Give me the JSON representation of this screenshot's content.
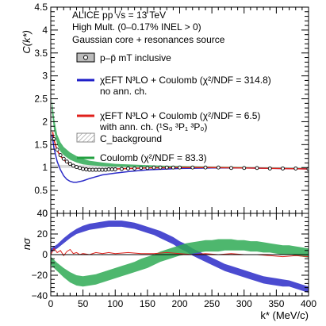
{
  "chart_data": [
    {
      "type": "line",
      "panel": "top",
      "ylabel": "C(k*)",
      "xlim": [
        0,
        400
      ],
      "ylim": [
        0,
        4.5
      ],
      "x_ticks": [
        0,
        50,
        100,
        150,
        200,
        250,
        300,
        350,
        400
      ],
      "y_ticks": [
        0,
        0.5,
        1,
        1.5,
        2,
        2.5,
        3,
        3.5,
        4,
        4.5
      ],
      "y_tick_labels": [
        "0",
        "0.5",
        "1",
        "1.5",
        "2",
        "2.5",
        "3",
        "3.5",
        "4",
        "4.5"
      ],
      "text_lines": [
        "ALICE pp √s = 13 TeV",
        "High Mult. (0–0.17% INEL > 0)",
        "Gaussian core + resonances source"
      ],
      "legend": {
        "position": "top-right",
        "entries": [
          {
            "label": "p–p̄ mT inclusive",
            "color": "#000000",
            "kind": "box-marker"
          },
          {
            "label": "χEFT N³LO + Coulomb (χ²/NDF = 314.8)",
            "label2": "no ann. ch.",
            "color": "#1f1fc8",
            "kind": "line"
          },
          {
            "label": "χEFT N³LO + Coulomb (χ²/NDF = 6.5)",
            "label2": "with ann. ch. (¹S₀ ³P₁ ³P₀)",
            "color": "#e0201b",
            "kind": "line"
          },
          {
            "label": "C_background",
            "color": "#bbbbbb",
            "kind": "hatched-box"
          },
          {
            "label": "Coulomb (χ²/NDF = 83.3)",
            "color": "#22a040",
            "kind": "line"
          }
        ]
      },
      "series": [
        {
          "name": "p–p̄ mT inclusive",
          "color": "#000000",
          "x": [
            5,
            10,
            15,
            20,
            25,
            30,
            35,
            40,
            45,
            50,
            55,
            60,
            65,
            70,
            75,
            80,
            85,
            90,
            95,
            100,
            110,
            120,
            130,
            140,
            150,
            160,
            170,
            180,
            190,
            200,
            220,
            240,
            260,
            280,
            300,
            320,
            340,
            360,
            380,
            400
          ],
          "y": [
            1.62,
            1.39,
            1.27,
            1.19,
            1.13,
            1.08,
            1.04,
            1.01,
            0.99,
            0.97,
            0.96,
            0.95,
            0.95,
            0.95,
            0.95,
            0.95,
            0.95,
            0.96,
            0.96,
            0.96,
            0.97,
            0.98,
            0.98,
            0.99,
            0.99,
            1.0,
            1.0,
            1.0,
            1.0,
            1.0,
            1.0,
            1.0,
            1.0,
            0.99,
            0.99,
            0.99,
            0.98,
            0.98,
            0.98,
            0.97
          ]
        },
        {
          "name": "χEFT N³LO + Coulomb (χ²/NDF = 314.8)",
          "color": "#2c2cc8",
          "x": [
            2,
            5,
            10,
            15,
            20,
            25,
            30,
            35,
            40,
            50,
            60,
            70,
            80,
            100,
            120,
            150,
            200,
            250,
            300,
            350,
            400
          ],
          "y": [
            1.72,
            1.42,
            1.13,
            0.95,
            0.82,
            0.74,
            0.7,
            0.68,
            0.68,
            0.71,
            0.76,
            0.8,
            0.84,
            0.88,
            0.91,
            0.95,
            0.98,
            0.99,
            0.99,
            0.98,
            0.97
          ]
        },
        {
          "name": "χEFT N³LO + Coulomb (χ²/NDF = 6.5)",
          "color": "#e0201b",
          "x": [
            3,
            5,
            10,
            15,
            20,
            25,
            30,
            40,
            50,
            60,
            80,
            100,
            150,
            200,
            250,
            300,
            350,
            400
          ],
          "y": [
            1.78,
            1.6,
            1.37,
            1.25,
            1.17,
            1.11,
            1.07,
            1.01,
            0.98,
            0.97,
            0.96,
            0.97,
            0.99,
            1.0,
            1.0,
            0.99,
            0.98,
            0.97
          ]
        },
        {
          "name": "C_background",
          "color": "#bbbbbb",
          "band": true,
          "x": [
            0,
            50,
            100,
            150,
            200,
            250,
            300,
            350,
            400
          ],
          "y_low": [
            0.99,
            0.99,
            0.99,
            1.0,
            1.0,
            1.0,
            0.99,
            0.98,
            0.97
          ],
          "y_high": [
            1.06,
            1.05,
            1.05,
            1.04,
            1.04,
            1.03,
            1.02,
            1.01,
            1.0
          ]
        },
        {
          "name": "Coulomb (χ²/NDF = 83.3)",
          "color": "#2faa55",
          "band": true,
          "x": [
            2,
            5,
            10,
            15,
            20,
            30,
            40,
            50,
            60,
            80,
            100,
            150,
            200,
            250,
            300,
            350,
            400
          ],
          "y_low": [
            2.2,
            1.82,
            1.5,
            1.35,
            1.27,
            1.17,
            1.11,
            1.07,
            1.05,
            1.03,
            1.02,
            1.01,
            1.01,
            1.0,
            0.99,
            0.98,
            0.97
          ],
          "y_high": [
            2.5,
            2.08,
            1.72,
            1.55,
            1.45,
            1.33,
            1.25,
            1.19,
            1.15,
            1.11,
            1.08,
            1.05,
            1.03,
            1.02,
            1.01,
            1.0,
            0.99
          ]
        }
      ]
    },
    {
      "type": "line",
      "panel": "bottom",
      "xlabel": "k* (MeV/c)",
      "ylabel": "nσ",
      "xlim": [
        0,
        400
      ],
      "ylim": [
        -40,
        40
      ],
      "x_ticks": [
        0,
        50,
        100,
        150,
        200,
        250,
        300,
        350,
        400
      ],
      "x_tick_labels": [
        "0",
        "50",
        "100",
        "150",
        "200",
        "250",
        "300",
        "350",
        "400"
      ],
      "y_ticks": [
        -40,
        -20,
        0,
        20,
        40
      ],
      "y_tick_labels": [
        "−40",
        "−20",
        "0",
        "20",
        "40"
      ],
      "series": [
        {
          "name": "χEFT N³LO + Coulomb (χ²/NDF = 314.8)",
          "color": "#2c2cc8",
          "band": true,
          "x": [
            0,
            10,
            20,
            30,
            40,
            50,
            60,
            70,
            80,
            90,
            100,
            110,
            120,
            130,
            140,
            150,
            160,
            170,
            180,
            190,
            200,
            210,
            220,
            230,
            240,
            250,
            260,
            270,
            280,
            290,
            300,
            310,
            320,
            330,
            340,
            350,
            360,
            370,
            380,
            390,
            400
          ],
          "y_low": [
            2,
            6,
            11,
            16,
            20,
            22,
            24,
            25,
            26,
            27,
            27,
            27,
            26,
            25,
            23,
            21,
            19,
            16,
            13,
            10,
            6,
            3,
            -1,
            -4,
            -7,
            -10,
            -13,
            -16,
            -18,
            -20,
            -22,
            -24,
            -26,
            -28,
            -29,
            -30,
            -31,
            -31,
            -33,
            -35,
            -37
          ],
          "y_high": [
            6,
            10,
            16,
            21,
            25,
            28,
            30,
            31,
            32,
            33,
            33,
            33,
            32,
            31,
            29,
            27,
            25,
            23,
            20,
            17,
            13,
            10,
            6,
            3,
            0,
            -3,
            -6,
            -9,
            -11,
            -13,
            -15,
            -17,
            -19,
            -21,
            -22,
            -23,
            -24,
            -25,
            -27,
            -29,
            -31
          ]
        },
        {
          "name": "χEFT N³LO + Coulomb (χ²/NDF = 6.5)",
          "color": "#e0201b",
          "x": [
            0,
            5,
            10,
            15,
            20,
            25,
            30,
            35,
            40,
            45,
            50,
            60,
            70,
            80,
            90,
            100,
            120,
            140,
            160,
            180,
            200,
            220,
            240,
            260,
            280,
            300,
            320,
            340,
            360,
            380,
            400
          ],
          "y": [
            0,
            6,
            2,
            4,
            -1,
            3,
            5,
            1,
            2,
            0,
            1,
            0,
            2,
            1,
            2,
            1,
            2,
            1,
            1,
            2,
            1,
            0,
            1,
            0,
            1,
            0,
            0,
            -1,
            -2,
            -1,
            -2
          ]
        },
        {
          "name": "Coulomb (χ²/NDF = 83.3)",
          "color": "#2faa55",
          "band": true,
          "x": [
            0,
            10,
            20,
            30,
            40,
            50,
            60,
            70,
            80,
            90,
            100,
            110,
            120,
            130,
            140,
            150,
            160,
            170,
            180,
            190,
            200,
            210,
            220,
            230,
            240,
            250,
            260,
            270,
            280,
            290,
            300,
            310,
            320,
            330,
            340,
            350,
            360,
            370,
            380,
            390,
            400
          ],
          "y_low": [
            -10,
            -16,
            -22,
            -27,
            -30,
            -31,
            -30,
            -29,
            -27,
            -25,
            -23,
            -21,
            -19,
            -17,
            -15,
            -13,
            -10,
            -7,
            -5,
            -3,
            -1,
            0,
            1,
            2,
            3,
            3,
            3,
            4,
            4,
            4,
            4,
            3,
            3,
            2,
            2,
            1,
            0,
            0,
            -1,
            -2,
            -3
          ],
          "y_high": [
            -2,
            -8,
            -13,
            -17,
            -20,
            -21,
            -20,
            -19,
            -17,
            -15,
            -13,
            -11,
            -9,
            -7,
            -4,
            -2,
            0,
            3,
            5,
            7,
            9,
            11,
            12,
            13,
            14,
            14,
            15,
            15,
            15,
            14,
            14,
            13,
            13,
            12,
            11,
            10,
            9,
            9,
            8,
            7,
            6
          ]
        }
      ]
    }
  ]
}
